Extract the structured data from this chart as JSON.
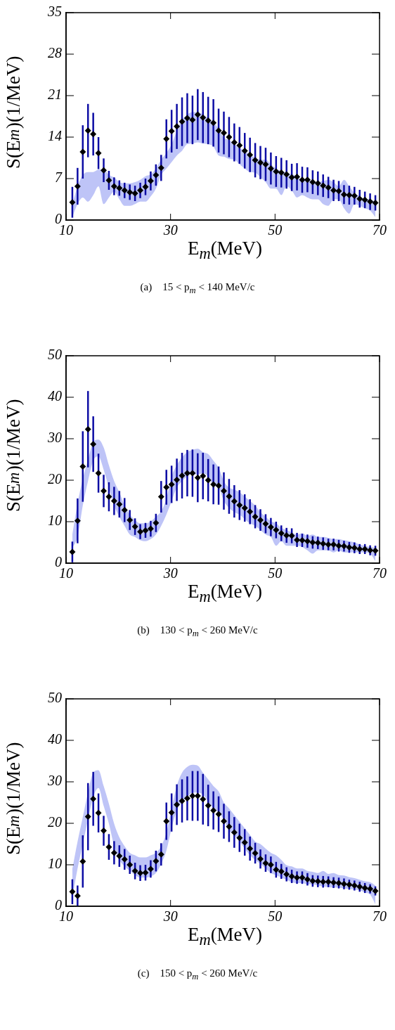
{
  "chart_data": [
    {
      "type": "scatter",
      "xlabel": "E$_{m}$(MeV)",
      "ylabel": "S(E$_{m}$)(1/MeV)",
      "annotations": [
        "(a)    15 < p$_{m}$ < 140 MeV/c"
      ],
      "xlim": [
        10,
        70
      ],
      "xticks": [
        10,
        30,
        50,
        70
      ],
      "ylim": [
        0,
        35
      ],
      "yticks": [
        0,
        7,
        14,
        21,
        28,
        35
      ],
      "marker": "diamond",
      "x": [
        11.2,
        12.2,
        13.2,
        14.2,
        15.2,
        16.2,
        17.2,
        18.2,
        19.2,
        20.2,
        21.2,
        22.2,
        23.2,
        24.2,
        25.2,
        26.2,
        27.2,
        28.2,
        29.2,
        30.2,
        31.2,
        32.2,
        33.2,
        34.2,
        35.2,
        36.2,
        37.2,
        38.2,
        39.2,
        40.2,
        41.2,
        42.2,
        43.2,
        44.2,
        45.2,
        46.2,
        47.2,
        48.2,
        49.2,
        50.2,
        51.2,
        52.2,
        53.2,
        54.2,
        55.2,
        56.2,
        57.2,
        58.2,
        59.2,
        60.2,
        61.2,
        62.2,
        63.2,
        64.2,
        65.2,
        66.2,
        67.2,
        68.2,
        69.2
      ],
      "series": [
        {
          "type": "area",
          "color": "#a8b0f4",
          "values": [
            null,
            null,
            null,
            null,
            null,
            null,
            null,
            null,
            null,
            null,
            null,
            null,
            null,
            null,
            null,
            null,
            null,
            null,
            null,
            null,
            null,
            null,
            null,
            null,
            null,
            null,
            null,
            null,
            null,
            null,
            null,
            null,
            null,
            null,
            null,
            null,
            null,
            null,
            null,
            null,
            null,
            null,
            null,
            null,
            null,
            null,
            null,
            null,
            null,
            null,
            null,
            null,
            null,
            null,
            null,
            null,
            null,
            null,
            null
          ],
          "lower": [
            0.5,
            2.7,
            3.8,
            3.1,
            4.2,
            5.7,
            2.7,
            3.8,
            4.8,
            3.5,
            2.4,
            2.4,
            2.7,
            3.1,
            3.1,
            4.0,
            5.3,
            7.6,
            8.7,
            9.8,
            10.9,
            11.7,
            12.8,
            12.9,
            13.1,
            12.9,
            12.8,
            12.4,
            10.9,
            10.7,
            10.3,
            10.2,
            9.4,
            8.7,
            8.1,
            8.0,
            7.2,
            6.4,
            5.3,
            5.3,
            4.2,
            5.7,
            5.0,
            3.8,
            4.2,
            3.8,
            3.5,
            3.5,
            2.7,
            2.4,
            3.5,
            3.5,
            2.0,
            1.1,
            2.7,
            2.4,
            2.0,
            1.6,
            0.5
          ],
          "upper": [
            2.7,
            5.7,
            7.6,
            8.1,
            8.1,
            8.5,
            8.5,
            7.6,
            7.2,
            6.4,
            6.2,
            6.2,
            6.4,
            6.8,
            7.4,
            7.7,
            8.7,
            10.2,
            11.3,
            12.8,
            15.0,
            16.9,
            17.8,
            18.2,
            18.2,
            17.8,
            17.2,
            16.5,
            15.4,
            13.9,
            13.5,
            12.8,
            12.2,
            11.7,
            11.1,
            10.5,
            10.2,
            10.2,
            9.4,
            8.7,
            8.3,
            8.0,
            7.7,
            7.4,
            6.8,
            6.8,
            6.6,
            6.4,
            6.6,
            6.8,
            6.4,
            5.7,
            6.8,
            5.7,
            4.6,
            4.0,
            3.6,
            3.5,
            3.1
          ]
        },
        {
          "color": "#000000",
          "values": [
            3.0,
            5.7,
            11.5,
            15.1,
            14.5,
            11.3,
            8.4,
            6.7,
            5.7,
            5.4,
            5.0,
            4.7,
            4.5,
            5.0,
            5.6,
            6.6,
            7.6,
            8.8,
            13.7,
            15.0,
            15.8,
            16.6,
            17.2,
            16.9,
            17.8,
            17.3,
            16.8,
            16.4,
            15.1,
            14.7,
            14.0,
            13.1,
            12.6,
            11.7,
            11.0,
            10.1,
            9.7,
            9.4,
            8.7,
            8.2,
            8.0,
            7.7,
            7.2,
            7.3,
            6.8,
            6.8,
            6.4,
            6.2,
            5.8,
            5.5,
            5.0,
            4.9,
            4.3,
            4.2,
            4.1,
            3.6,
            3.4,
            3.1,
            2.9
          ],
          "errors": [
            2.6,
            3.1,
            4.5,
            4.5,
            3.6,
            2.7,
            2.0,
            1.6,
            1.5,
            1.3,
            1.3,
            1.3,
            1.3,
            1.3,
            1.4,
            1.6,
            1.8,
            2.2,
            3.3,
            3.6,
            3.8,
            4.1,
            4.2,
            4.1,
            4.3,
            4.3,
            4.0,
            4.0,
            3.7,
            3.6,
            3.4,
            3.2,
            3.1,
            3.0,
            2.9,
            2.9,
            2.8,
            2.8,
            2.7,
            2.6,
            2.5,
            2.4,
            2.3,
            2.3,
            2.2,
            2.1,
            2.0,
            2.0,
            1.9,
            1.8,
            1.8,
            1.7,
            1.6,
            1.6,
            1.5,
            1.5,
            1.4,
            1.4,
            1.3
          ]
        }
      ]
    },
    {
      "type": "scatter",
      "xlabel": "E$_{m}$(MeV)",
      "ylabel": "S(E$_{m}$)(1/MeV)",
      "annotations": [
        "(b)    130 < p$_{m}$ < 260 MeV/c"
      ],
      "xlim": [
        10,
        70
      ],
      "xticks": [
        10,
        30,
        50,
        70
      ],
      "ylim": [
        0,
        50
      ],
      "yticks": [
        0,
        10,
        20,
        30,
        40,
        50
      ],
      "marker": "diamond",
      "x": [
        11.2,
        12.2,
        13.2,
        14.2,
        15.2,
        16.2,
        17.2,
        18.2,
        19.2,
        20.2,
        21.2,
        22.2,
        23.2,
        24.2,
        25.2,
        26.2,
        27.2,
        28.2,
        29.2,
        30.2,
        31.2,
        32.2,
        33.2,
        34.2,
        35.2,
        36.2,
        37.2,
        38.2,
        39.2,
        40.2,
        41.2,
        42.2,
        43.2,
        44.2,
        45.2,
        46.2,
        47.2,
        48.2,
        49.2,
        50.2,
        51.2,
        52.2,
        53.2,
        54.2,
        55.2,
        56.2,
        57.2,
        58.2,
        59.2,
        60.2,
        61.2,
        62.2,
        63.2,
        64.2,
        65.2,
        66.2,
        67.2,
        68.2,
        69.2
      ],
      "series": [
        {
          "type": "area",
          "color": "#a8b0f4",
          "values": [
            null,
            null,
            null,
            null,
            null,
            null,
            null,
            null,
            null,
            null,
            null,
            null,
            null,
            null,
            null,
            null,
            null,
            null,
            null,
            null,
            null,
            null,
            null,
            null,
            null,
            null,
            null,
            null,
            null,
            null,
            null,
            null,
            null,
            null,
            null,
            null,
            null,
            null,
            null,
            null,
            null,
            null,
            null,
            null,
            null,
            null,
            null,
            null,
            null,
            null,
            null,
            null,
            null,
            null,
            null,
            null,
            null,
            null,
            null
          ],
          "lower": [
            3.7,
            6.3,
            13.9,
            19.8,
            24.7,
            25.7,
            22.5,
            18.2,
            13.9,
            11.2,
            9.0,
            6.9,
            6.3,
            5.5,
            5.3,
            5.8,
            6.9,
            9.0,
            11.7,
            15.0,
            18.2,
            19.8,
            20.9,
            21.4,
            21.4,
            21.6,
            20.9,
            18.7,
            18.2,
            15.0,
            13.3,
            12.3,
            11.7,
            10.6,
            9.6,
            9.0,
            8.0,
            6.9,
            6.3,
            4.2,
            5.3,
            4.2,
            4.2,
            4.2,
            3.9,
            3.1,
            2.3,
            3.1,
            3.1,
            3.1,
            2.6,
            3.1,
            2.6,
            2.6,
            2.6,
            2.6,
            2.6,
            2.3,
            0.5
          ],
          "upper": [
            6.9,
            14.4,
            20.3,
            24.9,
            29.2,
            29.8,
            27.9,
            23.6,
            19.8,
            17.1,
            13.9,
            11.7,
            10.4,
            9.6,
            9.6,
            10.1,
            11.2,
            12.5,
            15.5,
            20.9,
            23.6,
            25.5,
            26.8,
            27.3,
            27.6,
            26.8,
            26.3,
            24.7,
            23.0,
            19.8,
            18.2,
            17.7,
            17.1,
            16.0,
            15.0,
            13.9,
            12.3,
            11.2,
            10.1,
            9.6,
            8.5,
            8.0,
            7.4,
            6.9,
            7.2,
            6.6,
            6.9,
            6.3,
            6.3,
            6.1,
            5.8,
            5.8,
            5.5,
            5.3,
            5.0,
            4.5,
            4.2,
            3.9,
            3.7
          ]
        },
        {
          "color": "#000000",
          "values": [
            2.7,
            10.2,
            23.3,
            32.3,
            28.7,
            21.7,
            17.4,
            16.0,
            15.0,
            14.2,
            12.8,
            10.4,
            8.8,
            7.6,
            7.9,
            8.3,
            9.7,
            16.0,
            18.3,
            19.0,
            20.1,
            21.1,
            21.7,
            21.7,
            20.6,
            21.0,
            20.0,
            19.0,
            18.7,
            17.4,
            16.1,
            14.9,
            14.0,
            13.3,
            12.4,
            11.2,
            10.4,
            9.5,
            8.7,
            8.0,
            7.2,
            6.7,
            6.6,
            5.6,
            5.5,
            5.3,
            5.0,
            4.9,
            4.7,
            4.5,
            4.5,
            4.2,
            4.1,
            3.8,
            3.7,
            3.4,
            3.4,
            3.1,
            3.0
          ],
          "errors": [
            2.5,
            5.4,
            8.5,
            9.2,
            6.7,
            4.7,
            3.9,
            3.5,
            3.4,
            3.2,
            2.9,
            2.4,
            2.0,
            1.8,
            1.8,
            1.9,
            2.2,
            3.8,
            4.2,
            4.5,
            5.1,
            5.5,
            5.6,
            5.7,
            5.9,
            5.6,
            5.1,
            4.8,
            4.6,
            4.5,
            4.2,
            3.9,
            3.6,
            3.3,
            3.0,
            2.8,
            2.6,
            2.3,
            2.2,
            2.0,
            1.9,
            1.8,
            1.8,
            1.7,
            1.6,
            1.6,
            1.5,
            1.5,
            1.5,
            1.4,
            1.4,
            1.4,
            1.3,
            1.3,
            1.3,
            1.2,
            1.2,
            1.2,
            1.2
          ]
        }
      ]
    },
    {
      "type": "scatter",
      "xlabel": "E$_{m}$(MeV)",
      "ylabel": "S(E$_{m}$)(1/MeV)",
      "annotations": [
        "(c)    150 < p$_{m}$ < 260 MeV/c"
      ],
      "xlim": [
        10,
        70
      ],
      "xticks": [
        10,
        30,
        50,
        70
      ],
      "ylim": [
        0,
        50
      ],
      "yticks": [
        0,
        10,
        20,
        30,
        40,
        50
      ],
      "marker": "diamond",
      "x": [
        11.2,
        12.2,
        13.2,
        14.2,
        15.2,
        16.2,
        17.2,
        18.2,
        19.2,
        20.2,
        21.2,
        22.2,
        23.2,
        24.2,
        25.2,
        26.2,
        27.2,
        28.2,
        29.2,
        30.2,
        31.2,
        32.2,
        33.2,
        34.2,
        35.2,
        36.2,
        37.2,
        38.2,
        39.2,
        40.2,
        41.2,
        42.2,
        43.2,
        44.2,
        45.2,
        46.2,
        47.2,
        48.2,
        49.2,
        50.2,
        51.2,
        52.2,
        53.2,
        54.2,
        55.2,
        56.2,
        57.2,
        58.2,
        59.2,
        60.2,
        61.2,
        62.2,
        63.2,
        64.2,
        65.2,
        66.2,
        67.2,
        68.2,
        69.2
      ],
      "series": [
        {
          "type": "area",
          "color": "#a8b0f4",
          "values": [
            null,
            null,
            null,
            null,
            null,
            null,
            null,
            null,
            null,
            null,
            null,
            null,
            null,
            null,
            null,
            null,
            null,
            null,
            null,
            null,
            null,
            null,
            null,
            null,
            null,
            null,
            null,
            null,
            null,
            null,
            null,
            null,
            null,
            null,
            null,
            null,
            null,
            null,
            null,
            null,
            null,
            null,
            null,
            null,
            null,
            null,
            null,
            null,
            null,
            null,
            null,
            null,
            null,
            null,
            null,
            null,
            null,
            null,
            null
          ],
          "lower": [
            2.0,
            9.1,
            15.0,
            20.9,
            26.3,
            28.5,
            24.2,
            19.9,
            14.5,
            11.2,
            9.6,
            8.5,
            7.5,
            6.9,
            6.9,
            7.2,
            8.0,
            10.2,
            13.4,
            18.8,
            23.1,
            25.2,
            26.3,
            27.4,
            27.4,
            26.9,
            25.2,
            23.6,
            22.6,
            20.9,
            18.2,
            17.2,
            15.6,
            13.9,
            12.3,
            11.2,
            10.2,
            9.1,
            8.0,
            7.5,
            6.9,
            6.4,
            5.8,
            5.6,
            5.6,
            5.3,
            5.3,
            5.0,
            4.8,
            4.6,
            4.5,
            4.5,
            4.3,
            4.2,
            4.0,
            3.8,
            3.3,
            2.8,
            0.5
          ],
          "upper": [
            9.0,
            15.6,
            21.5,
            27.4,
            32.2,
            32.8,
            29.0,
            24.7,
            19.9,
            16.6,
            14.5,
            12.9,
            12.3,
            11.8,
            11.8,
            12.3,
            12.9,
            14.5,
            17.7,
            23.6,
            29.0,
            32.2,
            33.6,
            34.1,
            33.9,
            32.2,
            30.6,
            29.0,
            27.7,
            25.0,
            23.6,
            22.0,
            20.4,
            18.8,
            17.2,
            15.6,
            15.0,
            13.9,
            12.9,
            12.3,
            11.2,
            9.9,
            9.6,
            9.1,
            9.1,
            8.5,
            8.3,
            8.0,
            8.5,
            7.8,
            8.0,
            7.5,
            7.4,
            7.0,
            6.8,
            6.4,
            6.0,
            5.8,
            5.0
          ]
        },
        {
          "color": "#000000",
          "values": [
            3.5,
            2.5,
            10.8,
            21.6,
            25.9,
            22.5,
            18.2,
            14.3,
            12.9,
            12.1,
            11.3,
            10.0,
            8.5,
            8.0,
            8.1,
            9.0,
            10.9,
            12.5,
            20.5,
            22.6,
            24.5,
            25.4,
            26.0,
            26.6,
            26.6,
            25.8,
            24.3,
            23.1,
            22.2,
            20.5,
            19.2,
            17.8,
            16.5,
            15.4,
            13.9,
            12.8,
            11.4,
            10.4,
            10.0,
            8.8,
            8.4,
            7.7,
            7.2,
            6.9,
            6.9,
            6.5,
            6.1,
            6.0,
            5.9,
            5.9,
            5.7,
            5.6,
            5.4,
            5.2,
            5.0,
            4.7,
            4.4,
            4.2,
            3.7
          ],
          "errors": [
            3.0,
            2.5,
            6.3,
            8.1,
            6.5,
            4.7,
            3.6,
            3.1,
            2.8,
            2.6,
            2.5,
            2.2,
            2.0,
            1.9,
            1.9,
            2.1,
            2.5,
            2.7,
            4.5,
            4.6,
            4.9,
            5.2,
            5.3,
            6.0,
            6.0,
            6.1,
            5.0,
            4.6,
            4.3,
            4.2,
            3.7,
            3.7,
            3.4,
            3.2,
            2.9,
            2.5,
            2.3,
            2.1,
            2.0,
            1.9,
            1.8,
            1.7,
            1.6,
            1.5,
            1.5,
            1.5,
            1.4,
            1.4,
            1.4,
            1.3,
            1.3,
            1.3,
            1.3,
            1.2,
            1.2,
            1.2,
            1.2,
            1.1,
            1.1
          ]
        }
      ]
    }
  ]
}
